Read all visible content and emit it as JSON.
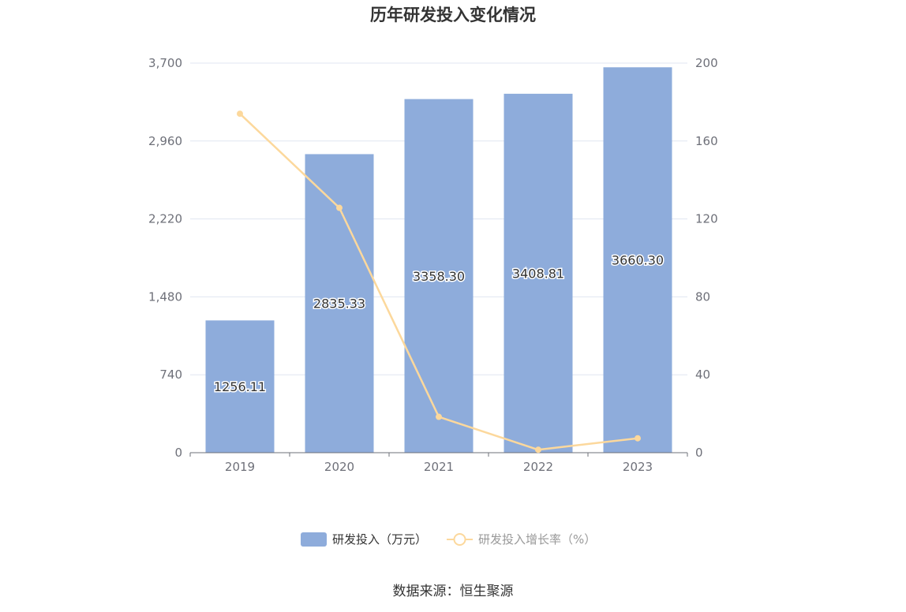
{
  "chart_data": {
    "type": "bar",
    "title": "历年研发投入变化情况",
    "categories": [
      "2019",
      "2020",
      "2021",
      "2022",
      "2023"
    ],
    "series": [
      {
        "name": "研发投入（万元）",
        "type": "bar",
        "axis": "left",
        "values": [
          1256.11,
          2835.33,
          3358.3,
          3408.81,
          3660.3
        ],
        "labels": [
          "1256.11",
          "2835.33",
          "3358.30",
          "3408.81",
          "3660.30"
        ]
      },
      {
        "name": "研发投入增长率（%）",
        "type": "line",
        "axis": "right",
        "values": [
          174,
          125.7,
          18.4,
          1.5,
          7.4
        ]
      }
    ],
    "y_left": {
      "ticks": [
        "0",
        "740",
        "1,480",
        "2,220",
        "2,960",
        "3,700"
      ],
      "ylim": [
        0,
        3700
      ]
    },
    "y_right": {
      "ticks": [
        "0",
        "40",
        "80",
        "120",
        "160",
        "200"
      ],
      "ylim": [
        0,
        200
      ]
    },
    "grid": true,
    "legend_position": "bottom-center",
    "colors": {
      "bar": "#8eacdb",
      "line": "#fcd89c",
      "grid": "#e0e6f1",
      "axis": "#6e7079"
    }
  },
  "source": "数据来源：恒生聚源"
}
